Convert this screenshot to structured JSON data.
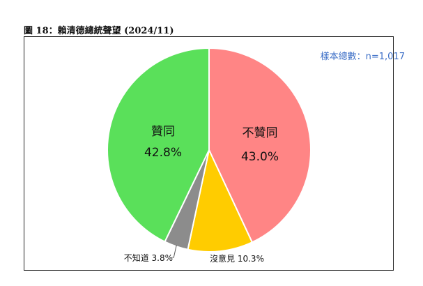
{
  "figure": {
    "title": "圖 18：賴清德總統聲望  (2024/11)",
    "sample_note": "樣本總數：n=1,017"
  },
  "chart_data": {
    "type": "pie",
    "title": "圖 18：賴清德總統聲望  (2024/11)",
    "slices": [
      {
        "label": "不贊同",
        "value": 43.0,
        "display": "43.0%",
        "color": "#ff8585"
      },
      {
        "label": "沒意見",
        "value": 10.3,
        "display": "沒意見 10.3%",
        "color": "#ffcc00"
      },
      {
        "label": "不知道",
        "value": 3.8,
        "display": "不知道 3.8%",
        "color": "#8c8c8c"
      },
      {
        "label": "贊同",
        "value": 42.8,
        "display": "42.8%",
        "color": "#5ae05a"
      }
    ],
    "start_angle_deg": 0,
    "direction": "clockwise",
    "annotation": "樣本總數：n=1,017"
  }
}
